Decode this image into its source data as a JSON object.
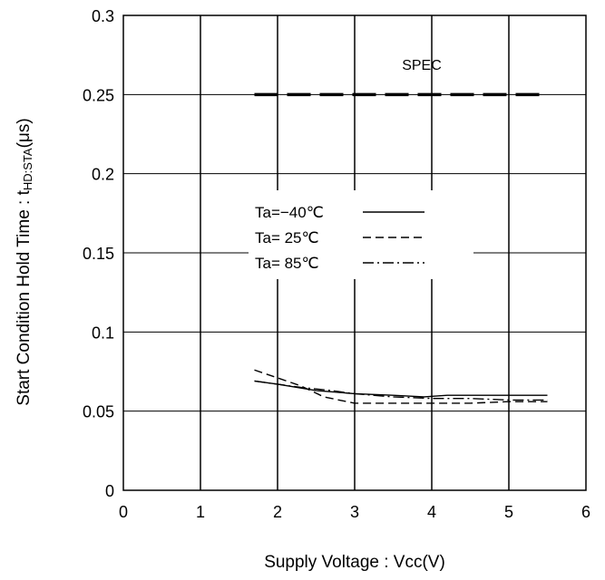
{
  "chart_data": {
    "type": "line",
    "xlabel": "Supply Voltage : Vcc(V)",
    "ylabel_main": "Start Condition Hold Time : t",
    "ylabel_sub": "HD:STA",
    "ylabel_unit": "(μs)",
    "xlim": [
      0,
      6
    ],
    "ylim": [
      0,
      0.3
    ],
    "x_ticks": [
      0,
      1,
      2,
      3,
      4,
      5,
      6
    ],
    "y_ticks": [
      0,
      0.05,
      0.1,
      0.15,
      0.2,
      0.25,
      0.3
    ],
    "x_tick_labels": [
      "0",
      "1",
      "2",
      "3",
      "4",
      "5",
      "6"
    ],
    "y_tick_labels": [
      "0",
      "0.05",
      "0.1",
      "0.15",
      "0.2",
      "0.25",
      "0.3"
    ],
    "grid": true,
    "legend_position": "middle-left",
    "spec": {
      "label": "SPEC",
      "value": 0.25,
      "x": [
        1.7,
        5.5
      ]
    },
    "series": [
      {
        "name": "Ta=−40℃",
        "style": "solid",
        "x": [
          1.7,
          2.0,
          2.5,
          3.0,
          3.5,
          3.9,
          4.2,
          4.5,
          5.0,
          5.5
        ],
        "y": [
          0.069,
          0.067,
          0.063,
          0.061,
          0.06,
          0.059,
          0.06,
          0.06,
          0.06,
          0.06
        ]
      },
      {
        "name": "Ta= 25℃",
        "style": "dashed",
        "x": [
          1.7,
          2.0,
          2.3,
          2.6,
          3.0,
          3.5,
          4.0,
          4.5,
          5.0,
          5.5
        ],
        "y": [
          0.076,
          0.071,
          0.066,
          0.059,
          0.055,
          0.055,
          0.055,
          0.055,
          0.056,
          0.056
        ]
      },
      {
        "name": "Ta= 85℃",
        "style": "dashdot",
        "x": [
          1.7,
          2.0,
          2.3,
          2.7,
          3.0,
          3.5,
          4.0,
          4.5,
          5.0,
          5.5
        ],
        "y": [
          0.069,
          0.067,
          0.065,
          0.063,
          0.061,
          0.059,
          0.058,
          0.058,
          0.057,
          0.057
        ]
      }
    ]
  }
}
